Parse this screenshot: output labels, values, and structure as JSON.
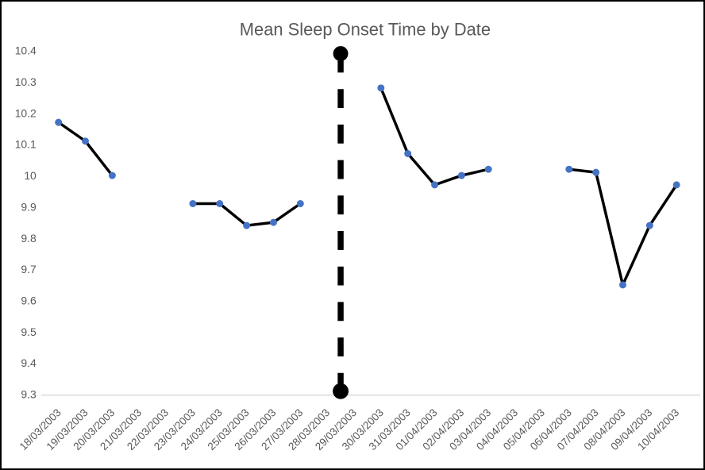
{
  "chart_data": {
    "type": "line",
    "title": "Mean Sleep Onset Time by Date",
    "xlabel": "",
    "ylabel": "",
    "grid": false,
    "legend": false,
    "categories": [
      "18/03/2003",
      "19/03/2003",
      "20/03/2003",
      "21/03/2003",
      "22/03/2003",
      "23/03/2003",
      "24/03/2003",
      "25/03/2003",
      "26/03/2003",
      "27/03/2003",
      "28/03/2003",
      "29/03/2003",
      "30/03/2003",
      "31/03/2003",
      "01/04/2003",
      "02/04/2003",
      "03/04/2003",
      "04/04/2003",
      "05/04/2003",
      "06/04/2003",
      "07/04/2003",
      "08/04/2003",
      "09/04/2003",
      "10/04/2003"
    ],
    "values": [
      10.17,
      10.11,
      10,
      null,
      null,
      9.91,
      9.91,
      9.84,
      9.85,
      9.91,
      null,
      null,
      10.28,
      10.07,
      9.97,
      10,
      10.02,
      null,
      null,
      10.02,
      10.01,
      9.65,
      9.84,
      9.97
    ],
    "ylim": [
      9.3,
      10.4
    ],
    "ytick_step": 0.1,
    "yticks": [
      "10.4",
      "10.3",
      "10.2",
      "10.1",
      "10",
      "9.9",
      "9.8",
      "9.7",
      "9.6",
      "9.5",
      "9.4",
      "9.3"
    ],
    "divider": {
      "between_categories": [
        "28/03/2003",
        "29/03/2003"
      ],
      "top_value": 10.39,
      "bottom_value": 9.31,
      "style": "dashed-vertical-with-end-dots"
    },
    "colors": {
      "marker": "#4472C4",
      "line": "#000000",
      "divider": "#000000",
      "title": "#595959",
      "axis_text": "#595959",
      "axis_line": "#d9d9d9",
      "background": "#ffffff",
      "border": "#000000"
    }
  }
}
